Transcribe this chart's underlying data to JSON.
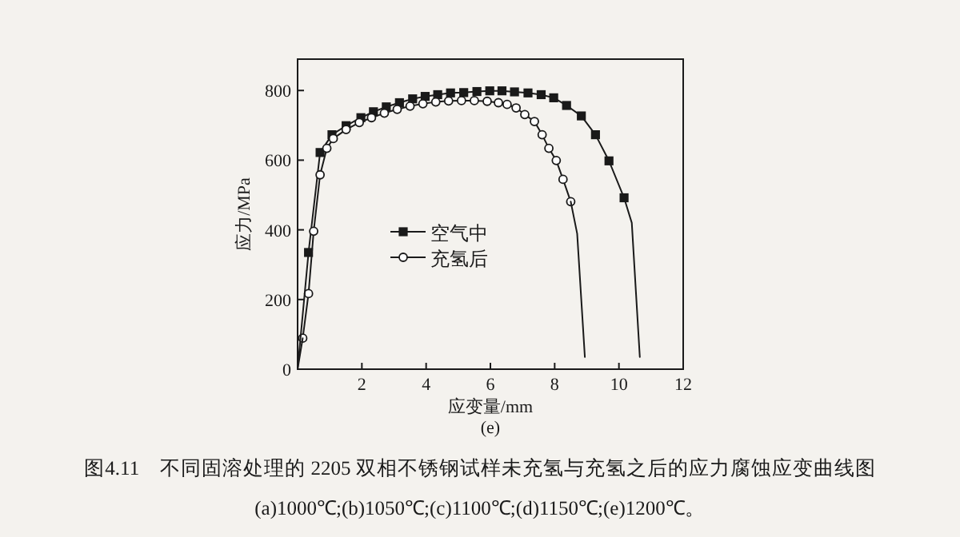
{
  "chart_data": {
    "type": "line",
    "xlabel": "应变量/mm",
    "ylabel": "应力/MPa",
    "xlim": [
      0,
      12
    ],
    "ylim": [
      0,
      890
    ],
    "xticks": [
      2,
      4,
      6,
      8,
      10,
      12
    ],
    "yticks": [
      0,
      200,
      400,
      600,
      800
    ],
    "legend": "left",
    "series": [
      {
        "name": "空气中",
        "color": "#1a1a1a",
        "marker": "square",
        "x": [
          0.34,
          0.7,
          1.07,
          1.51,
          1.97,
          2.36,
          2.76,
          3.17,
          3.58,
          3.97,
          4.36,
          4.76,
          5.17,
          5.58,
          5.98,
          6.36,
          6.75,
          7.17,
          7.58,
          7.97,
          8.37,
          8.83,
          9.27,
          9.69,
          10.16
        ],
        "values": [
          335,
          622,
          673,
          699,
          722,
          739,
          753,
          765,
          776,
          783,
          788,
          793,
          794,
          797,
          799,
          799,
          796,
          793,
          788,
          779,
          757,
          727,
          673,
          598,
          492
        ]
      },
      {
        "color": "#1a1a1a",
        "marker": "none",
        "x": [
          10.16,
          10.4,
          10.65
        ],
        "values": [
          492,
          420,
          35
        ]
      },
      {
        "name": "充氢后",
        "color": "#1a1a1a",
        "marker": "circle",
        "x": [
          0.16,
          0.34,
          0.5,
          0.7,
          0.91,
          1.11,
          1.51,
          1.92,
          2.3,
          2.7,
          3.1,
          3.5,
          3.9,
          4.3,
          4.7,
          5.1,
          5.5,
          5.9,
          6.25,
          6.52,
          6.8,
          7.07,
          7.37,
          7.61,
          7.82,
          8.05,
          8.26,
          8.5
        ],
        "values": [
          89,
          217,
          396,
          558,
          634,
          662,
          688,
          708,
          722,
          735,
          746,
          755,
          762,
          767,
          770,
          771,
          771,
          769,
          765,
          760,
          750,
          731,
          711,
          673,
          634,
          599,
          545,
          481
        ]
      },
      {
        "color": "#1a1a1a",
        "marker": "none",
        "x": [
          8.5,
          8.7,
          8.94
        ],
        "values": [
          481,
          389,
          35
        ]
      },
      {
        "color": "#1a1a1a",
        "marker": "none",
        "x": [
          0,
          0.34
        ],
        "values": [
          0,
          335
        ]
      },
      {
        "color": "#1a1a1a",
        "marker": "none",
        "x": [
          0,
          0.16
        ],
        "values": [
          0,
          89
        ]
      }
    ],
    "annotations": [
      "(e)",
      "图4.11　不同固溶处理的 2205 双相不锈钢试样未充氢与充氢之后的应力腐蚀应变曲线图",
      "(a)1000℃;(b)1050℃;(c)1100℃;(d)1150℃;(e)1200℃。"
    ]
  }
}
